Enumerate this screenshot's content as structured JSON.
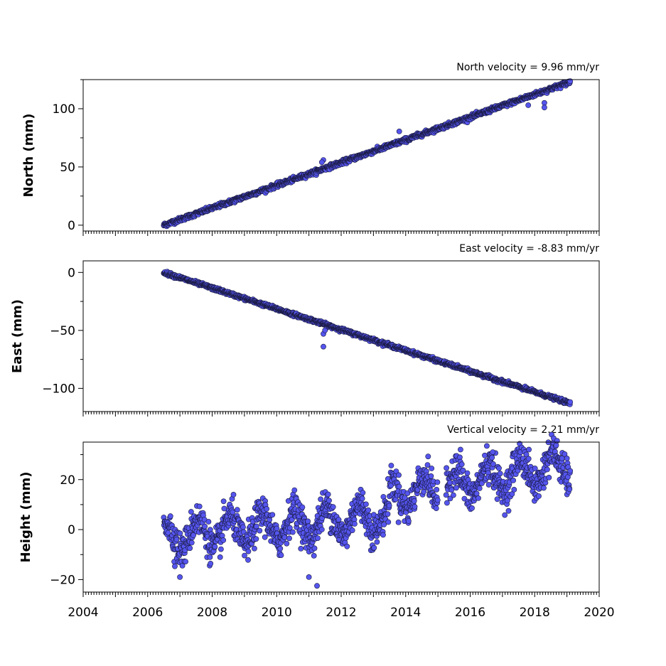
{
  "chart_data": [
    {
      "type": "scatter",
      "title": "North velocity = 9.96 mm/yr",
      "ylabel": "North (mm)",
      "xlim": [
        2004,
        2020
      ],
      "ylim": [
        -5,
        125
      ],
      "yticks": [
        0,
        50,
        100
      ],
      "yticklabels": [
        "0",
        "50",
        "100"
      ],
      "series": [
        {
          "model": "linear",
          "x_range": [
            2006.5,
            2019.1
          ],
          "y_start": 0,
          "y_end": 123,
          "noise": 1.5,
          "outliers": [
            [
              2011.45,
              56
            ],
            [
              2011.4,
              54
            ],
            [
              2013.8,
              80.5
            ],
            [
              2018.3,
              105
            ],
            [
              2018.3,
              101
            ],
            [
              2017.8,
              103
            ]
          ]
        }
      ]
    },
    {
      "type": "scatter",
      "title": "East velocity = -8.83 mm/yr",
      "ylabel": "East (mm)",
      "xlim": [
        2004,
        2020
      ],
      "ylim": [
        -120,
        10
      ],
      "yticks": [
        0,
        -50,
        -100
      ],
      "yticklabels": [
        "0",
        "−50",
        "−100"
      ],
      "series": [
        {
          "model": "linear",
          "x_range": [
            2006.5,
            2019.1
          ],
          "y_start": 0,
          "y_end": -113,
          "noise": 1.2,
          "outliers": [
            [
              2011.45,
              -64
            ],
            [
              2011.45,
              -53
            ],
            [
              2011.5,
              -50
            ]
          ]
        }
      ]
    },
    {
      "type": "scatter",
      "title": "Vertical velocity = 2.21 mm/yr",
      "ylabel": "Height (mm)",
      "xlim": [
        2004,
        2020
      ],
      "ylim": [
        -25,
        35
      ],
      "yticks": [
        20,
        0,
        -20
      ],
      "yticklabels": [
        "20",
        "0",
        "−20"
      ],
      "series": [
        {
          "model": "seasonal",
          "x_range": [
            2006.5,
            2019.1
          ],
          "velocity": 2.21,
          "amplitude": 6,
          "noise": 3.5,
          "gaps": [
            [
              2015.0,
              2015.25
            ]
          ],
          "outliers": [
            [
              2011.25,
              -22.5
            ],
            [
              2011.0,
              -19
            ],
            [
              2007.0,
              -19
            ],
            [
              2015.7,
              32
            ],
            [
              2016.7,
              31
            ],
            [
              2019.0,
              28.5
            ]
          ]
        }
      ]
    }
  ],
  "xaxis": {
    "ticks": [
      2004,
      2006,
      2008,
      2010,
      2012,
      2014,
      2016,
      2018,
      2020
    ],
    "ticklabels": [
      "2004",
      "2006",
      "2008",
      "2010",
      "2012",
      "2014",
      "2016",
      "2018",
      "2020"
    ]
  },
  "colors": {
    "marker_fill": "#5555ee",
    "marker_edge": "#1a1a40"
  }
}
